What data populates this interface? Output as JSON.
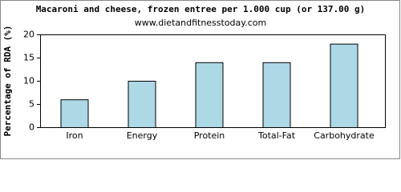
{
  "chart_data": {
    "type": "bar",
    "title": "Macaroni and cheese, frozen entree per 1.000 cup (or 137.00 g)",
    "subtitle": "www.dietandfitnesstoday.com",
    "y_label": "Percentage of RDA (%)",
    "categories": [
      "Iron",
      "Energy",
      "Protein",
      "Total-Fat",
      "Carbohydrate"
    ],
    "values": [
      6,
      10,
      14,
      14,
      18
    ],
    "color": "#add8e6",
    "ylim": [
      0,
      20
    ],
    "yticks": [
      0,
      5,
      10,
      15,
      20
    ],
    "grid": false
  }
}
